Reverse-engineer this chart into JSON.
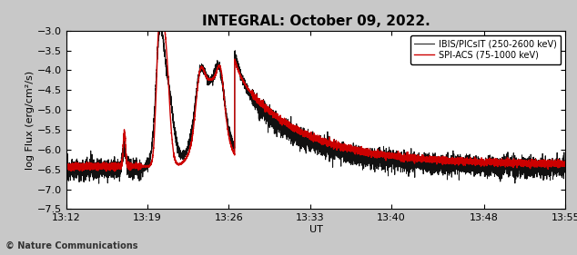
{
  "title": "INTEGRAL: October 09, 2022.",
  "xlabel": "UT",
  "ylabel": "log Flux (erg/cm²/s)",
  "legend": [
    {
      "label": "IBIS/PICsIT (250-2600 keV)",
      "color": "#111111",
      "lw": 0.7
    },
    {
      "label": "SPI-ACS (75-1000 keV)",
      "color": "#cc0000",
      "lw": 1.0
    }
  ],
  "xlim_minutes": [
    0,
    43
  ],
  "ylim": [
    -7.5,
    -3.0
  ],
  "yticks": [
    -7.5,
    -7.0,
    -6.5,
    -6.0,
    -5.5,
    -5.0,
    -4.5,
    -4.0,
    -3.5,
    -3.0
  ],
  "xtick_labels": [
    "13:12",
    "13:19",
    "13:26",
    "13:33",
    "13:40",
    "13:48",
    "13:55"
  ],
  "xtick_minutes": [
    0,
    7,
    14,
    21,
    28,
    36,
    43
  ],
  "watermark": "© Nature Communications",
  "fig_bg_color": "#c8c8c8",
  "plot_bg_color": "#ffffff",
  "title_fontsize": 11,
  "axis_fontsize": 8,
  "tick_fontsize": 8
}
